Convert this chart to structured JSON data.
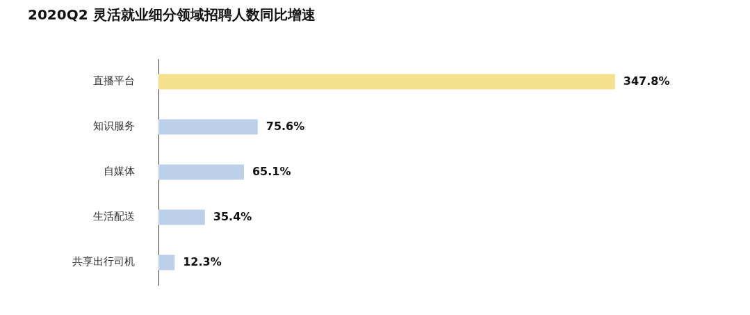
{
  "chart_data": {
    "type": "bar",
    "orientation": "horizontal",
    "title": "2020Q2 灵活就业细分领域招聘人数同比增速",
    "categories": [
      "直播平台",
      "知识服务",
      "自媒体",
      "生活配送",
      "共享出行司机"
    ],
    "values": [
      347.8,
      75.6,
      65.1,
      35.4,
      12.3
    ],
    "value_labels": [
      "347.8%",
      "75.6%",
      "65.1%",
      "35.4%",
      "12.3%"
    ],
    "colors": [
      "#f5e08e",
      "#bdd0ea",
      "#bdd0ea",
      "#bdd0ea",
      "#bdd0ea"
    ],
    "legend": false
  }
}
